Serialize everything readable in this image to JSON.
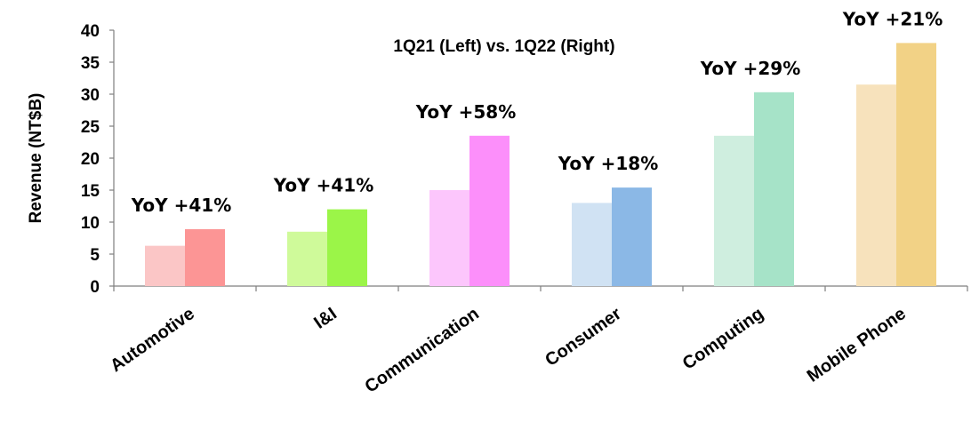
{
  "chart_data": {
    "type": "bar",
    "title": "1Q21 (Left)  vs. 1Q22 (Right)",
    "xlabel": "",
    "ylabel": "Revenue (NT$B)",
    "ylim": [
      0,
      40
    ],
    "yticks": [
      0,
      5,
      10,
      15,
      20,
      25,
      30,
      35,
      40
    ],
    "grid": false,
    "legend": "none",
    "categories": [
      "Automotive",
      "I&I",
      "Communication",
      "Consumer",
      "Computing",
      "Mobile Phone"
    ],
    "series": [
      {
        "values": [
          6.3,
          8.5,
          15.0,
          13.0,
          23.5,
          31.5
        ]
      },
      {
        "values": [
          8.9,
          12.0,
          23.5,
          15.4,
          30.3,
          38.0
        ]
      }
    ],
    "annotations": [
      "YoY +41%",
      "YoY +41%",
      "YoY +58%",
      "YoY +18%",
      "YoY +29%",
      "YoY +21%"
    ],
    "colors": {
      "light": [
        "#FBC6C6",
        "#CFFA9A",
        "#FCC6FC",
        "#D0E2F3",
        "#CFEEDF",
        "#F7E2BC"
      ],
      "dark": [
        "#FC9595",
        "#9BF548",
        "#FC8FFA",
        "#8BB8E6",
        "#A6E3C8",
        "#F2D286"
      ]
    }
  }
}
